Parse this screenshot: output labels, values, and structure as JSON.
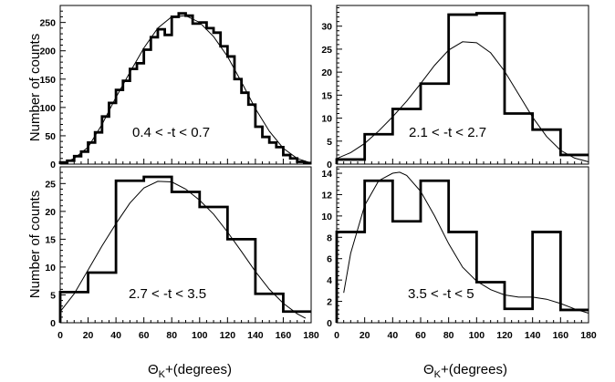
{
  "figure": {
    "ylabel": "Number of counts",
    "xlabel_symbol": "Θ",
    "xlabel_sub": "K",
    "xlabel_rest": "+(degrees)"
  },
  "chart_data": [
    {
      "type": "histogram",
      "label": "0.4 < -t < 0.7",
      "xlim": [
        0,
        180
      ],
      "ylim": [
        0,
        280
      ],
      "xticks": [
        0,
        20,
        40,
        60,
        80,
        100,
        120,
        140,
        160,
        180
      ],
      "yticks": [
        0,
        50,
        100,
        150,
        200,
        250
      ],
      "bins": {
        "edges": [
          0,
          5,
          10,
          15,
          20,
          25,
          30,
          35,
          40,
          45,
          50,
          55,
          60,
          65,
          70,
          75,
          80,
          85,
          90,
          95,
          100,
          105,
          110,
          115,
          120,
          125,
          130,
          135,
          140,
          145,
          150,
          155,
          160,
          165,
          170,
          175,
          180
        ],
        "counts": [
          3,
          6,
          14,
          22,
          38,
          56,
          84,
          108,
          131,
          147,
          168,
          178,
          202,
          224,
          238,
          228,
          260,
          266,
          262,
          248,
          250,
          240,
          232,
          208,
          190,
          150,
          126,
          105,
          66,
          48,
          38,
          30,
          16,
          10,
          4,
          2
        ]
      },
      "fit": {
        "x": [
          0,
          10,
          20,
          30,
          40,
          50,
          60,
          70,
          80,
          90,
          100,
          110,
          120,
          130,
          140,
          150,
          160,
          170,
          180
        ],
        "y": [
          0,
          10,
          30,
          70,
          118,
          162,
          205,
          240,
          260,
          262,
          250,
          225,
          190,
          145,
          98,
          58,
          28,
          10,
          2
        ]
      }
    },
    {
      "type": "histogram",
      "label": "2.1 < -t < 2.7",
      "xlim": [
        0,
        180
      ],
      "ylim": [
        0,
        34.5
      ],
      "xticks": [
        0,
        20,
        40,
        60,
        80,
        100,
        120,
        140,
        160,
        180
      ],
      "yticks": [
        0,
        5,
        10,
        15,
        20,
        25,
        30
      ],
      "bins": {
        "edges": [
          0,
          20,
          40,
          60,
          80,
          100,
          120,
          140,
          160,
          180
        ],
        "counts": [
          1,
          6.5,
          12,
          17.5,
          32.5,
          32.8,
          11,
          7.5,
          2
        ]
      },
      "fit": {
        "x": [
          0,
          10,
          20,
          30,
          40,
          50,
          60,
          70,
          80,
          90,
          100,
          110,
          120,
          130,
          140,
          150,
          160,
          170,
          180
        ],
        "y": [
          1.2,
          2.5,
          4.5,
          7.2,
          10.3,
          13.7,
          17.5,
          21.5,
          24.8,
          26.6,
          26.4,
          24.2,
          20.2,
          15.2,
          10.2,
          6.0,
          3.0,
          1.3,
          0.5
        ]
      }
    },
    {
      "type": "histogram",
      "label": "2.7 < -t < 3.5",
      "xlim": [
        0,
        180
      ],
      "ylim": [
        0,
        28
      ],
      "xticks": [
        0,
        20,
        40,
        60,
        80,
        100,
        120,
        140,
        160,
        180
      ],
      "yticks": [
        0,
        5,
        10,
        15,
        20,
        25
      ],
      "bins": {
        "edges": [
          0,
          20,
          40,
          60,
          80,
          100,
          120,
          140,
          160,
          180
        ],
        "counts": [
          5.5,
          9,
          25.5,
          26.2,
          23.5,
          20.8,
          15,
          5.2,
          2
        ]
      },
      "fit": {
        "x": [
          0,
          10,
          20,
          30,
          40,
          50,
          60,
          70,
          80,
          90,
          100,
          110,
          120,
          130,
          140,
          150,
          160,
          170,
          176
        ],
        "y": [
          2,
          5.2,
          9.5,
          13.8,
          17.8,
          21.5,
          24.2,
          25.4,
          25.3,
          24.0,
          22.0,
          19.5,
          16.3,
          12.8,
          9.2,
          6.0,
          3.5,
          1.6,
          0.8
        ]
      }
    },
    {
      "type": "histogram",
      "label": "3.5 < -t < 5",
      "xlim": [
        0,
        180
      ],
      "ylim": [
        0,
        14.6
      ],
      "xticks": [
        0,
        20,
        40,
        60,
        80,
        100,
        120,
        140,
        160,
        180
      ],
      "yticks": [
        0,
        2,
        4,
        6,
        8,
        10,
        12,
        14
      ],
      "bins": {
        "edges": [
          0,
          20,
          40,
          60,
          80,
          100,
          120,
          140,
          160,
          180
        ],
        "counts": [
          8.5,
          13.3,
          9.5,
          13.3,
          8.5,
          3.8,
          1.3,
          8.5,
          1.2
        ]
      },
      "fit": {
        "x": [
          5,
          10,
          20,
          30,
          40,
          45,
          50,
          60,
          70,
          80,
          90,
          100,
          110,
          120,
          130,
          140,
          150,
          160,
          170,
          180
        ],
        "y": [
          2.8,
          6.5,
          11,
          13.3,
          14.0,
          14.1,
          13.8,
          12.3,
          10.0,
          7.4,
          5.2,
          3.9,
          3.1,
          2.6,
          2.4,
          2.4,
          2.2,
          1.8,
          1.3,
          0.9
        ]
      }
    }
  ]
}
